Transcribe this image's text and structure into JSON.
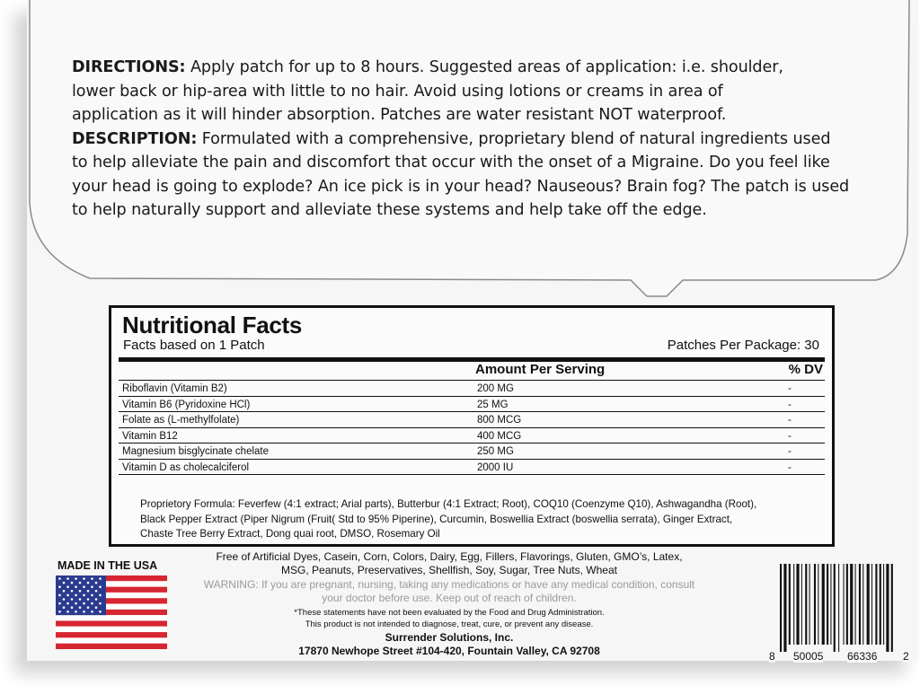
{
  "directions": {
    "label": "DIRECTIONS:",
    "lines": [
      " Apply patch for up to 8 hours. Suggested areas of application: i.e. shoulder,",
      "lower back or hip-area with little to no hair. Avoid using lotions or creams in area of",
      "application as it will hinder absorption. Patches are water resistant NOT waterproof."
    ]
  },
  "description": {
    "label": "DESCRIPTION:",
    "lines": [
      " Formulated with a comprehensive, proprietary blend of natural ingredients used",
      "to help alleviate the pain and discomfort that occur with the onset of a Migraine. Do you feel like",
      "your head is going to explode? An ice pick is in your head? Nauseous? Brain fog? The patch is used",
      "to help naturally support and alleviate these systems and help take off the edge."
    ]
  },
  "nutrition": {
    "title": "Nutritional Facts",
    "subtitle": "Facts based on 1 Patch",
    "per_package": "Patches Per Package: 30",
    "header_amount": "Amount Per Serving",
    "header_dv": "% DV",
    "rows": [
      {
        "name": "Riboflavin (Vitamin B2)",
        "amount": "200 MG",
        "dv": "-"
      },
      {
        "name": "Vitamin B6 (Pyridoxine HCl)",
        "amount": "25 MG",
        "dv": "-"
      },
      {
        "name": "Folate as (L-methylfolate)",
        "amount": "800 MCG",
        "dv": "-"
      },
      {
        "name": "Vitamin B12",
        "amount": "400 MCG",
        "dv": "-"
      },
      {
        "name": "Magnesium bisglycinate chelate",
        "amount": "250 MG",
        "dv": "-"
      },
      {
        "name": "Vitamin D as cholecalciferol",
        "amount": "2000 IU",
        "dv": "-"
      }
    ],
    "proprietary": [
      "Proprietory Formula: Feverfew (4:1 extract; Arial parts), Butterbur (4:1 Extract; Root), COQ10 (Coenzyme Q10), Ashwagandha (Root),",
      "Black Pepper Extract (Piper Nigrum (Fruit( Std to 95% Piperine), Curcumin, Boswellia Extract (boswellia serrata), Ginger Extract,",
      "Chaste Tree Berry Extract, Dong quai root, DMSO, Rosemary Oil"
    ]
  },
  "made_in": "MADE IN THE USA",
  "flag_icon": "us-flag",
  "legal": {
    "free_of": [
      "Free of Artificial Dyes, Casein, Corn, Colors, Dairy, Egg, Fillers, Flavorings, Gluten, GMO’s, Latex,",
      "MSG, Peanuts, Preservatives, Shellfish, Soy, Sugar, Tree Nuts, Wheat"
    ],
    "warning": [
      "WARNING: If you are pregnant, nursing, taking any medications or have any medical condition, consult",
      "your doctor before use. Keep out of reach of children."
    ],
    "fda": [
      "*These statements have not been evaluated by the Food and Drug Administration.",
      "This product is not intended to diagnose, treat, cure, or prevent any disease."
    ],
    "company": "Surrender Solutions, Inc.",
    "address": "17870 Newhope Street #104-420, Fountain Valley, CA 92708"
  },
  "barcode": {
    "first": "8",
    "left": "50005",
    "right": "66336",
    "check": "2"
  },
  "colors": {
    "flag_red": "#d62631",
    "flag_blue": "#2a3b8f",
    "warning_gray": "#9a9a9a"
  }
}
